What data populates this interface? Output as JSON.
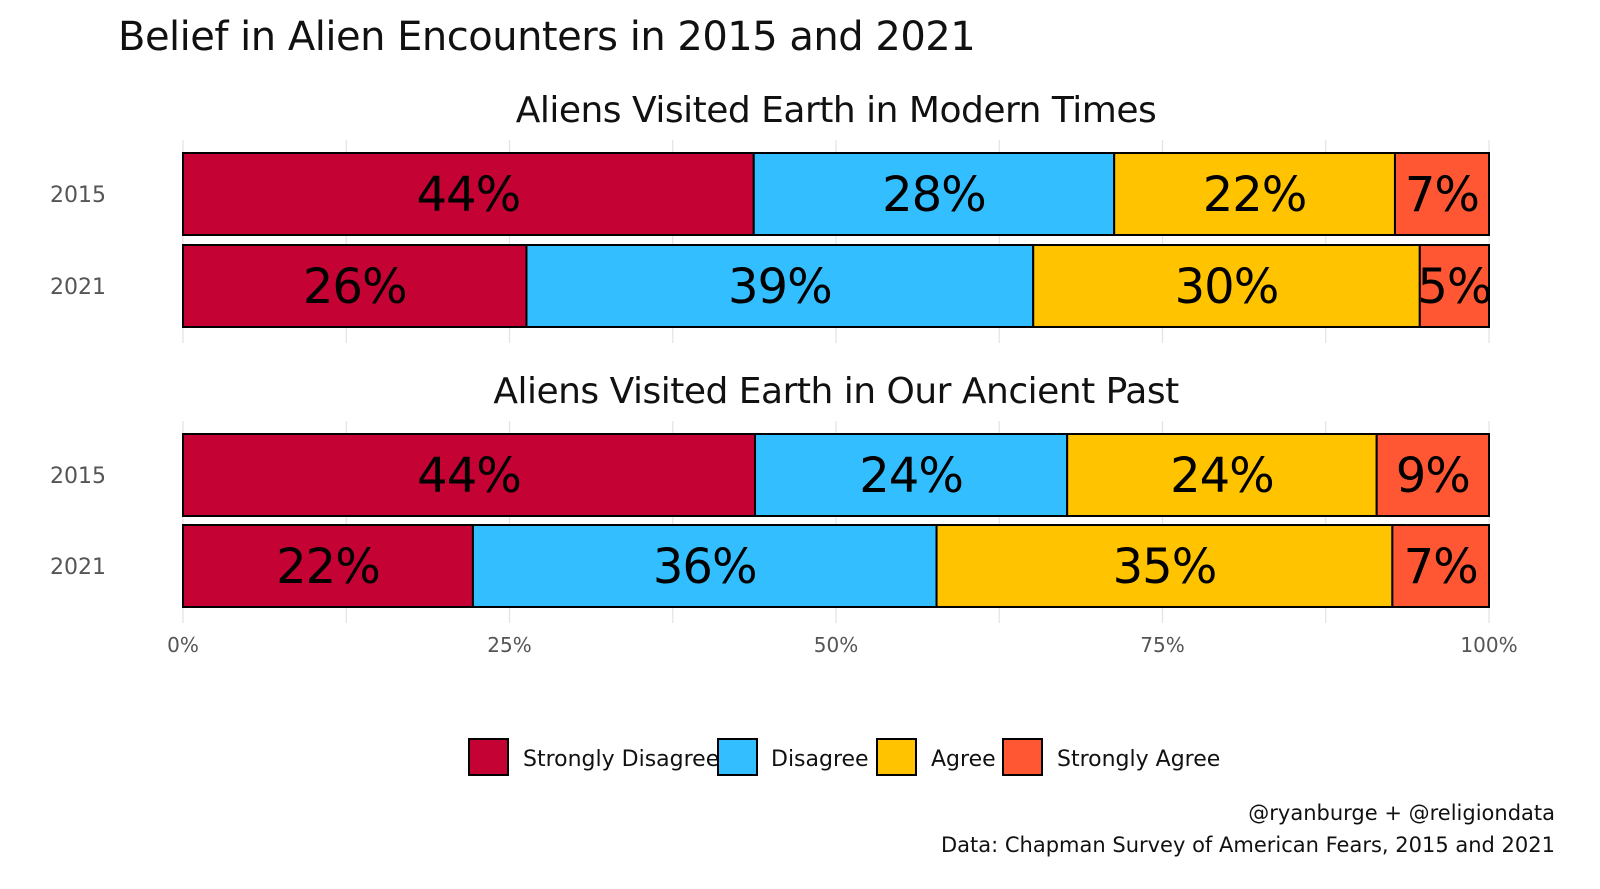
{
  "title": "Belief in Alien Encounters in 2015 and 2021",
  "caption_lines": [
    "@ryanburge + @religiondata",
    "Data: Chapman Survey of American Fears, 2015 and 2021"
  ],
  "chart_data": {
    "type": "bar",
    "orientation": "horizontal",
    "stacked": true,
    "xlim": [
      0,
      100
    ],
    "x_ticks": [
      0,
      25,
      50,
      75,
      100
    ],
    "x_tick_labels": [
      "0%",
      "25%",
      "50%",
      "75%",
      "100%"
    ],
    "grid": true,
    "legend_position": "bottom",
    "categories_order": [
      "Strongly Disagree",
      "Disagree",
      "Agree",
      "Strongly Agree"
    ],
    "colors": {
      "Strongly Disagree": "#C40233",
      "Disagree": "#33BFFF",
      "Agree": "#FFC300",
      "Strongly Agree": "#FF5733"
    },
    "panels": [
      {
        "title": "Aliens Visited Earth in Modern Times",
        "rows": [
          {
            "year": "2015",
            "values": [
              43.7,
              27.6,
              21.5,
              7.2
            ],
            "labels": [
              "44%",
              "28%",
              "22%",
              "7%"
            ]
          },
          {
            "year": "2021",
            "values": [
              26.3,
              38.8,
              29.6,
              5.3
            ],
            "labels": [
              "26%",
              "39%",
              "30%",
              "5%"
            ]
          }
        ]
      },
      {
        "title": "Aliens Visited Earth in Our Ancient Past",
        "rows": [
          {
            "year": "2015",
            "values": [
              43.8,
              23.9,
              23.7,
              8.6
            ],
            "labels": [
              "44%",
              "24%",
              "24%",
              "9%"
            ]
          },
          {
            "year": "2021",
            "values": [
              22.2,
              35.5,
              34.9,
              7.4
            ],
            "labels": [
              "22%",
              "36%",
              "35%",
              "7%"
            ]
          }
        ]
      }
    ]
  }
}
